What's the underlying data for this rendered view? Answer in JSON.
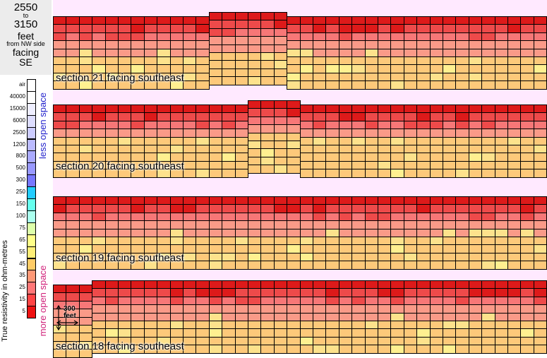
{
  "header": {
    "from": "2550",
    "to_word": "to",
    "to": "3150",
    "unit": "feet",
    "from_side": "from NW side",
    "facing": "facing",
    "direction": "SE"
  },
  "scale": {
    "title": "True resistivity in ohm-metres",
    "less_label": "less open space",
    "more_label": "more open space",
    "ticks": [
      "air",
      "40000",
      "15000",
      "6000",
      "2500",
      "1200",
      "800",
      "500",
      "300",
      "250",
      "150",
      "100",
      "75",
      "65",
      "55",
      "45",
      "35",
      "25",
      "15",
      "5"
    ],
    "colors": [
      "#ffffff",
      "#ffffff",
      "#eeeeff",
      "#ddddff",
      "#ccccff",
      "#bbbbff",
      "#aaaaff",
      "#9999ff",
      "#7777ff",
      "#22ccff",
      "#66ffee",
      "#aaffee",
      "#ddffaa",
      "#ffff88",
      "#ffee77",
      "#ffcc66",
      "#ff9977",
      "#ff7777",
      "#ff4444",
      "#ee1111"
    ]
  },
  "scalebar": {
    "label": "300\nfeet"
  },
  "chart_data": {
    "type": "heatmap",
    "title": "",
    "xlabel": "",
    "ylabel": "True resistivity in ohm-metres",
    "sections": [
      {
        "label": "section 21  facing southeast",
        "columns": 38,
        "rows": 9,
        "surface_profile": [
          0,
          0,
          0,
          0,
          0,
          0,
          0,
          0,
          0,
          0,
          0,
          0,
          1,
          1,
          1,
          1,
          1,
          1,
          0,
          0,
          0,
          0,
          0,
          0,
          0,
          0,
          0,
          0,
          0,
          0,
          0,
          0,
          0,
          0,
          0,
          0,
          0,
          0
        ],
        "bands": [
          "5",
          "15",
          "25",
          "35",
          "35",
          "45",
          "45",
          "45",
          "45"
        ]
      },
      {
        "label": "section 20  facing southeast",
        "columns": 38,
        "rows": 9,
        "surface_profile": [
          0,
          0,
          0,
          0,
          0,
          0,
          0,
          0,
          0,
          0,
          0,
          0,
          0,
          0,
          0,
          1,
          1,
          1,
          1,
          0,
          0,
          0,
          0,
          0,
          0,
          0,
          0,
          0,
          0,
          0,
          0,
          0,
          0,
          0,
          0,
          0,
          0,
          0
        ],
        "bands": [
          "5",
          "15",
          "25",
          "35",
          "45",
          "45",
          "45",
          "45",
          "45"
        ]
      },
      {
        "label": "section 19  facing southeast",
        "columns": 38,
        "rows": 9,
        "surface_profile": [
          0,
          0,
          0,
          0,
          0,
          0,
          0,
          0,
          0,
          0,
          0,
          0,
          0,
          0,
          0,
          0,
          0,
          0,
          0,
          0,
          0,
          0,
          0,
          0,
          0,
          0,
          0,
          0,
          0,
          0,
          0,
          0,
          0,
          0,
          0,
          0,
          0,
          0
        ],
        "bands": [
          "5",
          "15",
          "25",
          "35",
          "35",
          "45",
          "45",
          "45",
          "45"
        ]
      },
      {
        "label": "section 18  facing southeast",
        "columns": 38,
        "rows": 9,
        "surface_profile": [
          0,
          0,
          0,
          1,
          1,
          1,
          1,
          1,
          1,
          1,
          1,
          1,
          1,
          1,
          1,
          1,
          1,
          1,
          1,
          1,
          1,
          1,
          1,
          1,
          1,
          1,
          1,
          1,
          1,
          1,
          1,
          1,
          1,
          1,
          1,
          1,
          1,
          1
        ],
        "bands": [
          "5",
          "15",
          "25",
          "35",
          "35",
          "45",
          "45",
          "45",
          "45"
        ]
      }
    ]
  }
}
